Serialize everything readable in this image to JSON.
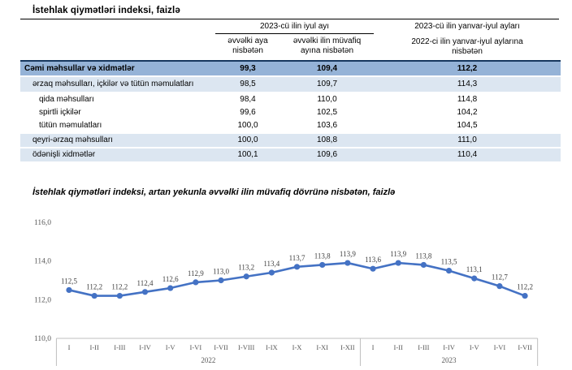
{
  "page": {
    "title": "İstehlak qiymətləri indeksi, faizlə"
  },
  "table": {
    "header": {
      "july_group": "2023-cü ilin iyul ayı",
      "col_prev_month": "əvvəlki aya nisbətən",
      "col_prev_year_month": "əvvəlki ilin müvafiq ayına nisbətən",
      "col_ytd_line1": "2023-cü ilin yanvar-iyul ayları",
      "col_ytd_line2": "2022-ci ilin yanvar-iyul aylarına",
      "col_ytd_line3": "nisbətən"
    },
    "rows": [
      {
        "label": "Cəmi məhsullar və xidmətlər",
        "vs_prev_month": "99,3",
        "vs_prev_year_month": "109,4",
        "ytd": "112,2"
      },
      {
        "label": "ərzaq məhsulları, içkilər və tütün məmulatları",
        "vs_prev_month": "98,5",
        "vs_prev_year_month": "109,7",
        "ytd": "114,3"
      },
      {
        "label": "qida məhsulları",
        "vs_prev_month": "98,4",
        "vs_prev_year_month": "110,0",
        "ytd": "114,8"
      },
      {
        "label": "spirtli içkilər",
        "vs_prev_month": "99,6",
        "vs_prev_year_month": "102,5",
        "ytd": "104,2"
      },
      {
        "label": "tütün məmulatları",
        "vs_prev_month": "100,0",
        "vs_prev_year_month": "103,6",
        "ytd": "104,5"
      },
      {
        "label": "qeyri-ərzaq məhsulları",
        "vs_prev_month": "100,0",
        "vs_prev_year_month": "108,8",
        "ytd": "111,0"
      },
      {
        "label": "ödənişli xidmətlər",
        "vs_prev_month": "100,1",
        "vs_prev_year_month": "109,6",
        "ytd": "110,4"
      }
    ]
  },
  "chart_data": {
    "type": "line",
    "title": "İstehlak qiymətləri indeksi, artan yekunla əvvəlki ilin müvafiq dövrünə nisbətən, faizlə",
    "categories": [
      "I",
      "I-II",
      "I-III",
      "I-IV",
      "I-V",
      "I-VI",
      "I-VII",
      "I-VIII",
      "I-IX",
      "I-X",
      "I-XI",
      "I-XII",
      "I",
      "I-II",
      "I-III",
      "I-IV",
      "I-V",
      "I-VI",
      "I-VII"
    ],
    "year_groups": [
      {
        "label": "2022",
        "count": 12
      },
      {
        "label": "2023",
        "count": 7
      }
    ],
    "values": [
      112.5,
      112.2,
      112.2,
      112.4,
      112.6,
      112.9,
      113.0,
      113.2,
      113.4,
      113.7,
      113.8,
      113.9,
      113.6,
      113.9,
      113.8,
      113.5,
      113.1,
      112.7,
      112.2
    ],
    "point_labels": [
      "112,5",
      "112,2",
      "112,2",
      "112,4",
      "112,6",
      "112,9",
      "113,0",
      "113,2",
      "113,4",
      "113,7",
      "113,8",
      "113,9",
      "113,6",
      "113,9",
      "113,8",
      "113,5",
      "113,1",
      "112,7",
      "112,2"
    ],
    "ylim": [
      110,
      116
    ],
    "yticks": [
      {
        "value": 116,
        "label": "116,0"
      },
      {
        "value": 114,
        "label": "114,0"
      },
      {
        "value": 112,
        "label": "112,0"
      },
      {
        "value": 110,
        "label": "110,0"
      }
    ],
    "grid": false,
    "legend": "none",
    "line_color": "#4472C4"
  },
  "colors": {
    "total_row_bg": "#95B3D7",
    "band_row_bg": "#DCE6F1",
    "dark_border": "#17375E",
    "line": "#4472C4",
    "axis": "#BFBFBF"
  }
}
